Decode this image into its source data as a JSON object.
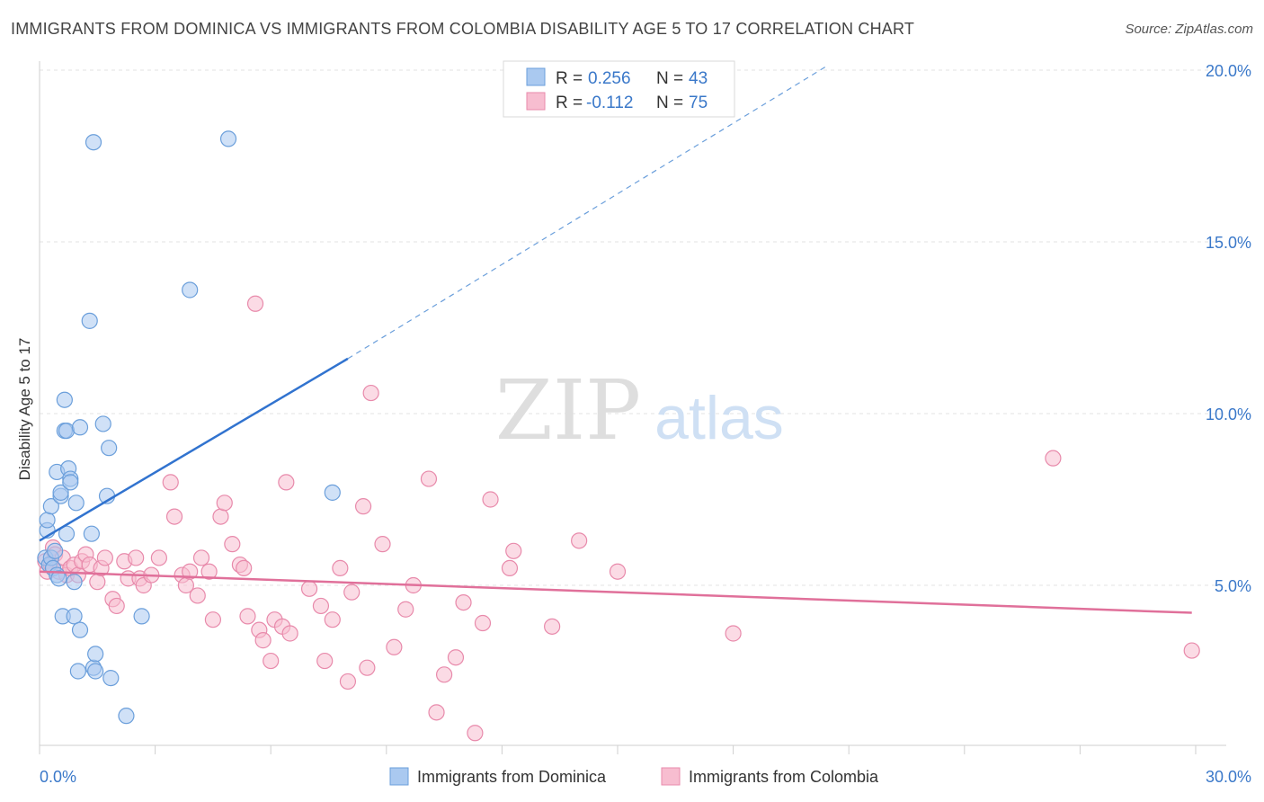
{
  "header": {
    "title": "IMMIGRANTS FROM DOMINICA VS IMMIGRANTS FROM COLOMBIA DISABILITY AGE 5 TO 17 CORRELATION CHART",
    "source": "Source: ZipAtlas.com"
  },
  "watermark": {
    "zip": "ZIP",
    "atlas": "atlas"
  },
  "stats": {
    "r_label": "R =",
    "n_label": "N =",
    "rows": [
      {
        "r": "0.256",
        "n": "43"
      },
      {
        "r": "-0.112",
        "n": "75"
      }
    ]
  },
  "colors": {
    "blue_fill": "#aac9f0",
    "blue_stroke": "#6b9fdb",
    "blue_line": "#3173cf",
    "pink_fill": "#f7bdd0",
    "pink_stroke": "#e88aab",
    "pink_line": "#e0709a",
    "tick_text": "#3a78c9",
    "grid": "#e3e3e3"
  },
  "chart_data": {
    "type": "scatter",
    "title": "IMMIGRANTS FROM DOMINICA VS IMMIGRANTS FROM COLOMBIA DISABILITY AGE 5 TO 17 CORRELATION CHART",
    "xlabel": "",
    "ylabel": "Disability Age 5 to 17",
    "xlim": [
      0,
      30
    ],
    "ylim": [
      0,
      20.5
    ],
    "x_tick_labels": [
      "0.0%",
      "30.0%"
    ],
    "y_ticks": [
      5,
      10,
      15,
      20
    ],
    "y_tick_labels": [
      "5.0%",
      "10.0%",
      "15.0%",
      "20.0%"
    ],
    "grid": true,
    "legend_position": "bottom-center",
    "series": [
      {
        "name": "Immigrants from Dominica",
        "color": "#aac9f0",
        "trend": {
          "x": [
            0.0,
            8.0
          ],
          "y": [
            6.3,
            11.6
          ],
          "dashed_extension": {
            "x": [
              8.0,
              20.4
            ],
            "y": [
              11.6,
              20.1
            ]
          }
        },
        "points": [
          [
            0.15,
            5.8
          ],
          [
            0.2,
            6.6
          ],
          [
            0.2,
            6.9
          ],
          [
            0.25,
            5.6
          ],
          [
            0.3,
            7.3
          ],
          [
            0.3,
            5.8
          ],
          [
            0.35,
            5.5
          ],
          [
            0.4,
            6.0
          ],
          [
            0.45,
            5.3
          ],
          [
            0.45,
            8.3
          ],
          [
            0.5,
            5.2
          ],
          [
            0.55,
            7.6
          ],
          [
            0.55,
            7.7
          ],
          [
            0.6,
            4.1
          ],
          [
            0.65,
            10.4
          ],
          [
            0.65,
            9.5
          ],
          [
            0.7,
            9.5
          ],
          [
            0.7,
            6.5
          ],
          [
            0.75,
            8.4
          ],
          [
            0.8,
            8.1
          ],
          [
            0.8,
            8.0
          ],
          [
            0.9,
            5.1
          ],
          [
            0.9,
            4.1
          ],
          [
            0.95,
            7.4
          ],
          [
            1.0,
            2.5
          ],
          [
            1.05,
            3.7
          ],
          [
            1.05,
            9.6
          ],
          [
            1.3,
            12.7
          ],
          [
            1.35,
            6.5
          ],
          [
            1.4,
            17.9
          ],
          [
            1.4,
            2.6
          ],
          [
            1.45,
            2.5
          ],
          [
            1.45,
            3.0
          ],
          [
            1.65,
            9.7
          ],
          [
            1.75,
            7.6
          ],
          [
            1.8,
            9.0
          ],
          [
            1.85,
            2.3
          ],
          [
            2.25,
            1.2
          ],
          [
            2.65,
            4.1
          ],
          [
            3.9,
            13.6
          ],
          [
            4.9,
            18.0
          ],
          [
            7.6,
            7.7
          ]
        ]
      },
      {
        "name": "Immigrants from Colombia",
        "color": "#f7bdd0",
        "trend": {
          "x": [
            0.0,
            29.9
          ],
          "y": [
            5.4,
            4.2
          ]
        },
        "points": [
          [
            0.15,
            5.7
          ],
          [
            0.2,
            5.4
          ],
          [
            0.3,
            5.6
          ],
          [
            0.35,
            6.1
          ],
          [
            0.4,
            5.9
          ],
          [
            0.5,
            5.4
          ],
          [
            0.6,
            5.8
          ],
          [
            0.7,
            5.3
          ],
          [
            0.8,
            5.5
          ],
          [
            0.9,
            5.6
          ],
          [
            1.0,
            5.3
          ],
          [
            1.1,
            5.7
          ],
          [
            1.2,
            5.9
          ],
          [
            1.3,
            5.6
          ],
          [
            1.5,
            5.1
          ],
          [
            1.6,
            5.5
          ],
          [
            1.7,
            5.8
          ],
          [
            1.9,
            4.6
          ],
          [
            2.0,
            4.4
          ],
          [
            2.2,
            5.7
          ],
          [
            2.3,
            5.2
          ],
          [
            2.5,
            5.8
          ],
          [
            2.6,
            5.2
          ],
          [
            2.7,
            5.0
          ],
          [
            2.9,
            5.3
          ],
          [
            3.1,
            5.8
          ],
          [
            3.4,
            8.0
          ],
          [
            3.5,
            7.0
          ],
          [
            3.7,
            5.3
          ],
          [
            3.8,
            5.0
          ],
          [
            3.9,
            5.4
          ],
          [
            4.1,
            4.7
          ],
          [
            4.2,
            5.8
          ],
          [
            4.4,
            5.4
          ],
          [
            4.5,
            4.0
          ],
          [
            4.7,
            7.0
          ],
          [
            4.8,
            7.4
          ],
          [
            5.0,
            6.2
          ],
          [
            5.2,
            5.6
          ],
          [
            5.3,
            5.5
          ],
          [
            5.4,
            4.1
          ],
          [
            5.6,
            13.2
          ],
          [
            5.7,
            3.7
          ],
          [
            5.8,
            3.4
          ],
          [
            6.0,
            2.8
          ],
          [
            6.1,
            4.0
          ],
          [
            6.3,
            3.8
          ],
          [
            6.4,
            8.0
          ],
          [
            6.5,
            3.6
          ],
          [
            7.0,
            4.9
          ],
          [
            7.3,
            4.4
          ],
          [
            7.4,
            2.8
          ],
          [
            7.6,
            4.0
          ],
          [
            7.8,
            5.5
          ],
          [
            8.0,
            2.2
          ],
          [
            8.1,
            4.8
          ],
          [
            8.4,
            7.3
          ],
          [
            8.5,
            2.6
          ],
          [
            8.6,
            10.6
          ],
          [
            8.9,
            6.2
          ],
          [
            9.2,
            3.2
          ],
          [
            9.5,
            4.3
          ],
          [
            9.7,
            5.0
          ],
          [
            10.1,
            8.1
          ],
          [
            10.3,
            1.3
          ],
          [
            10.5,
            2.4
          ],
          [
            10.8,
            2.9
          ],
          [
            11.0,
            4.5
          ],
          [
            11.3,
            0.7
          ],
          [
            11.5,
            3.9
          ],
          [
            11.7,
            7.5
          ],
          [
            12.2,
            5.5
          ],
          [
            12.3,
            6.0
          ],
          [
            13.3,
            3.8
          ],
          [
            14.0,
            6.3
          ],
          [
            15.0,
            5.4
          ],
          [
            18.0,
            3.6
          ],
          [
            26.3,
            8.7
          ],
          [
            29.9,
            3.1
          ]
        ]
      }
    ]
  }
}
